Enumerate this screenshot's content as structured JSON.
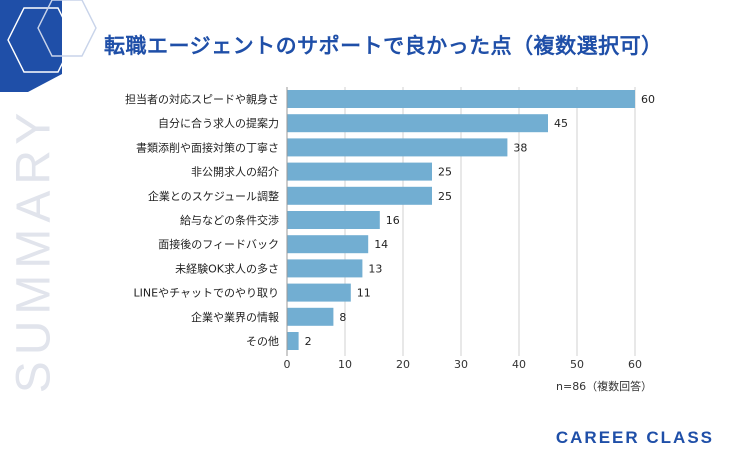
{
  "header": {
    "title": "転職エージェントのサポートで良かった点（複数選択可）",
    "side_label": "SUMMARY"
  },
  "footer": {
    "note": "n=86（複数回答）",
    "brand": "CAREER CLASS"
  },
  "colors": {
    "bar": "#72aed2",
    "accent": "#1f4fa8",
    "grid": "#d0d0d0"
  },
  "chart_data": {
    "type": "bar",
    "orientation": "horizontal",
    "categories": [
      "担当者の対応スピードや親身さ",
      "自分に合う求人の提案力",
      "書類添削や面接対策の丁寧さ",
      "非公開求人の紹介",
      "企業とのスケジュール調整",
      "給与などの条件交渉",
      "面接後のフィードバック",
      "未経験OK求人の多さ",
      "LINEやチャットでのやり取り",
      "企業や業界の情報",
      "その他"
    ],
    "values": [
      60,
      45,
      38,
      25,
      25,
      16,
      14,
      13,
      11,
      8,
      2
    ],
    "xlim": [
      0,
      60
    ],
    "xticks": [
      0,
      10,
      20,
      30,
      40,
      50,
      60
    ],
    "grid": true,
    "data_labels": true
  }
}
